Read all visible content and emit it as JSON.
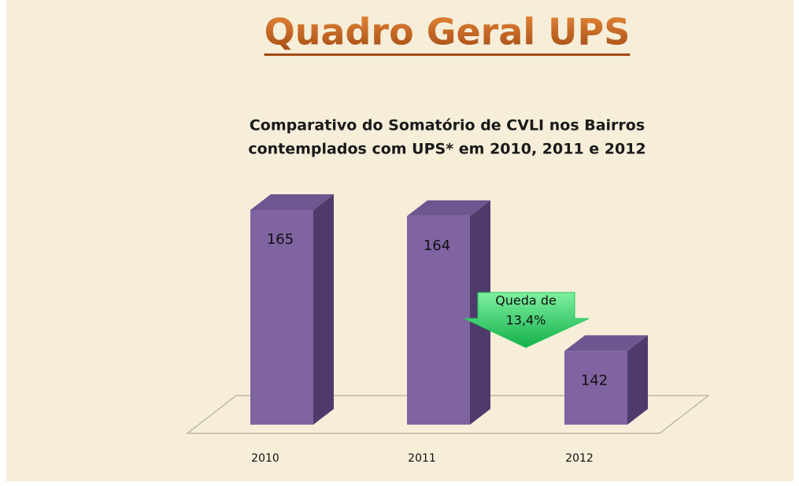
{
  "chart_data": {
    "type": "bar3d",
    "page_title": "Quadro Geral UPS",
    "title": [
      "Comparativo do Somatório de CVLI nos Bairros",
      "contemplados com UPS* em 2010, 2011 e 2012"
    ],
    "categories": [
      "2010",
      "2011",
      "2012"
    ],
    "values": [
      165,
      164,
      142
    ],
    "color": "#8063a1",
    "ylim": [
      130,
      170
    ],
    "annotation": [
      "Queda de",
      "13,4%"
    ],
    "annotation_color": "#22c55e"
  }
}
